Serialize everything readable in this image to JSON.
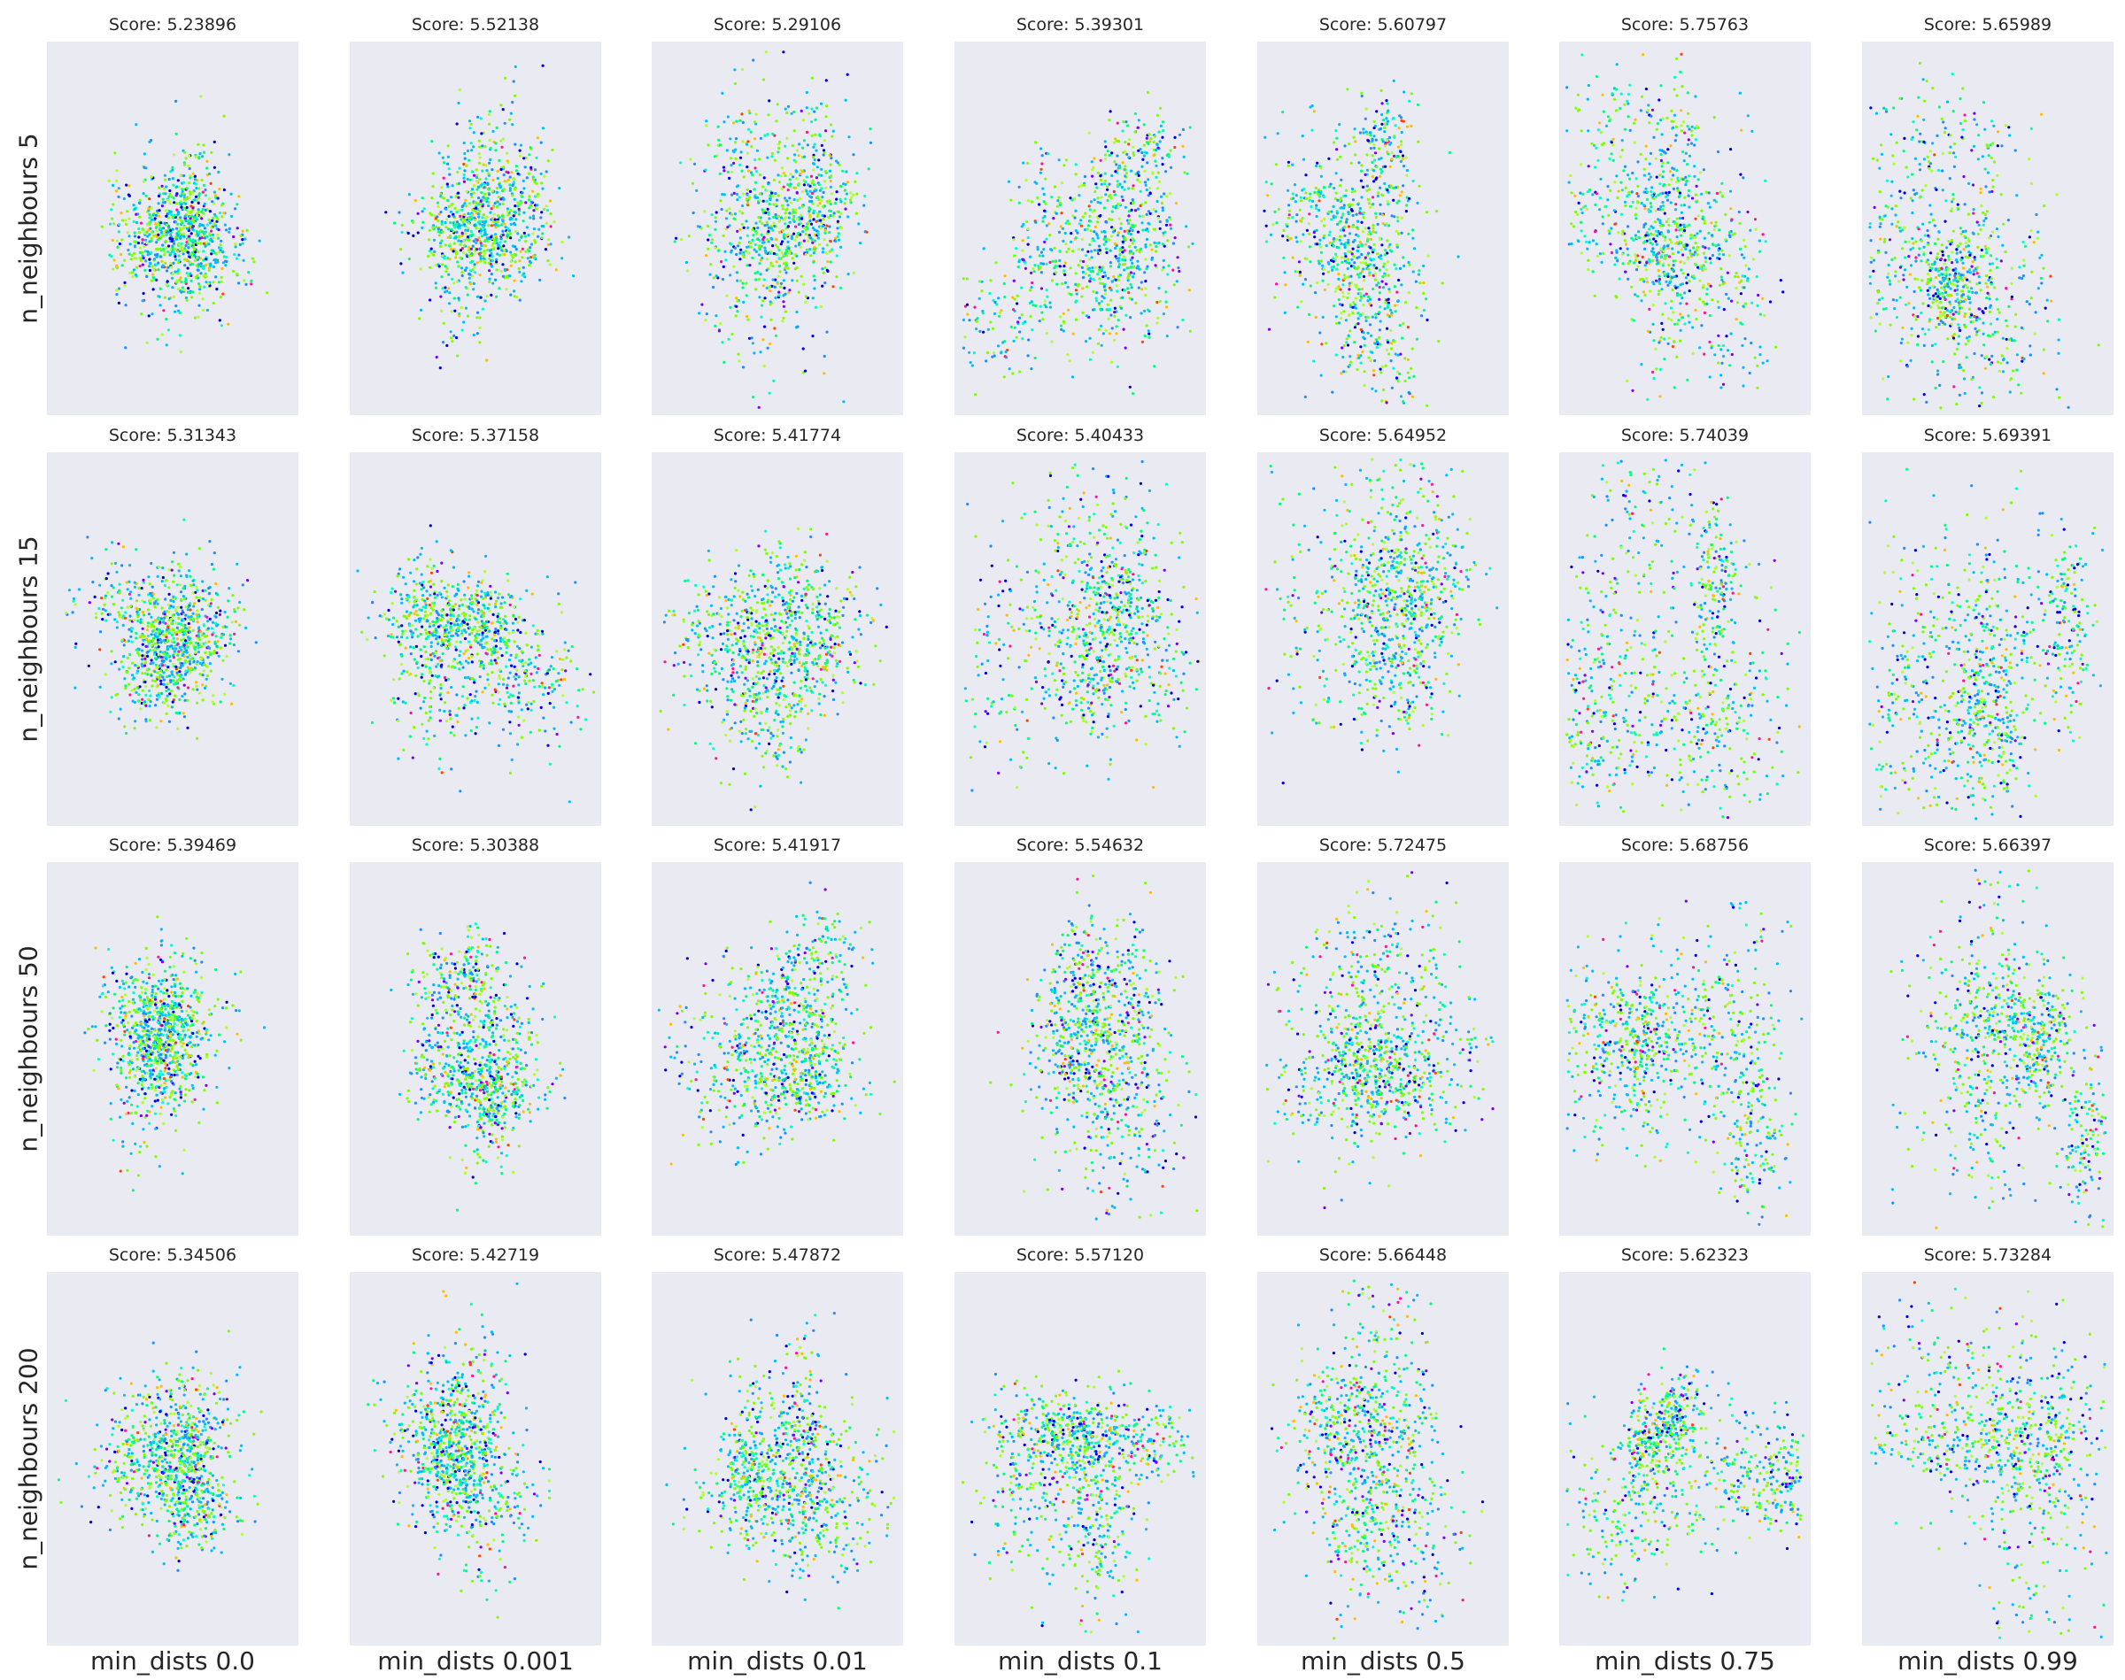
{
  "chart_data": {
    "type": "scatter",
    "layout": "grid",
    "rows": [
      "n_neighbours 5",
      "n_neighbours 15",
      "n_neighbours 50",
      "n_neighbours 200"
    ],
    "columns": [
      "min_dists 0.0",
      "min_dists 0.001",
      "min_dists 0.01",
      "min_dists 0.1",
      "min_dists 0.5",
      "min_dists 0.75",
      "min_dists 0.99"
    ],
    "score_label": "Score: ",
    "scores": [
      [
        "5.23896",
        "5.52138",
        "5.29106",
        "5.39301",
        "5.60797",
        "5.75763",
        "5.65989"
      ],
      [
        "5.31343",
        "5.37158",
        "5.41774",
        "5.40433",
        "5.64952",
        "5.74039",
        "5.69391"
      ],
      [
        "5.39469",
        "5.30388",
        "5.41917",
        "5.54632",
        "5.72475",
        "5.68756",
        "5.66397"
      ],
      [
        "5.34506",
        "5.42719",
        "5.47872",
        "5.57120",
        "5.66448",
        "5.62323",
        "5.73284"
      ]
    ],
    "grid": false,
    "axes_ticks": false,
    "palette": [
      "#00bfff",
      "#1e90ff",
      "#7fff00",
      "#adff2f",
      "#00ff7f",
      "#00ffcc",
      "#ffbf00",
      "#0000e6",
      "#7b00ff",
      "#ff1493",
      "#ff4500"
    ],
    "panel_background": "#eaeaf2"
  }
}
